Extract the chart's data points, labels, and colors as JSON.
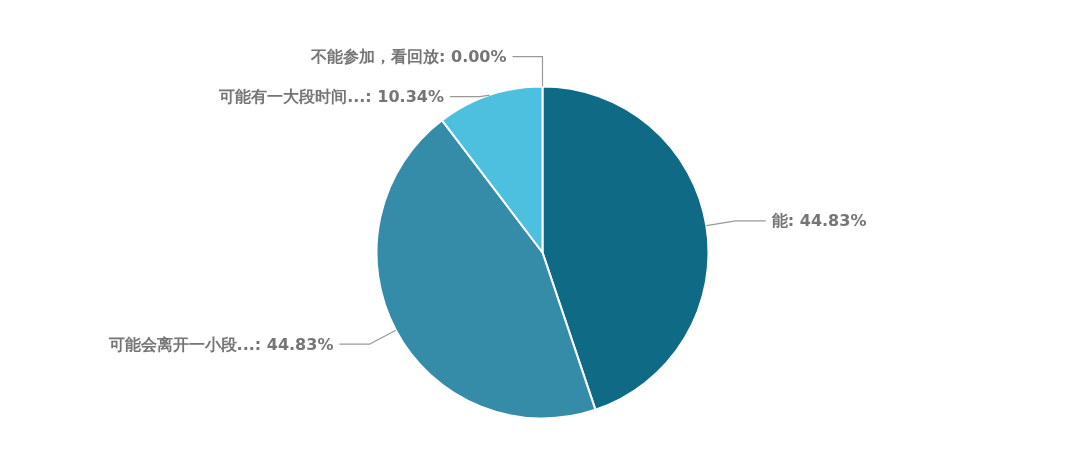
{
  "chart_data": {
    "type": "pie",
    "categories": [
      "能",
      "可能会离开一小段...",
      "可能有一大段时间...",
      "不能参加，看回放"
    ],
    "values": [
      44.83,
      44.83,
      10.34,
      0.0
    ],
    "colors": [
      "#0e6a85",
      "#348ca8",
      "#4dc0df",
      "#2a7d99"
    ],
    "value_labels": [
      ": 44.83%",
      ": 44.83%",
      ": 10.34%",
      ": 0.00%"
    ]
  }
}
